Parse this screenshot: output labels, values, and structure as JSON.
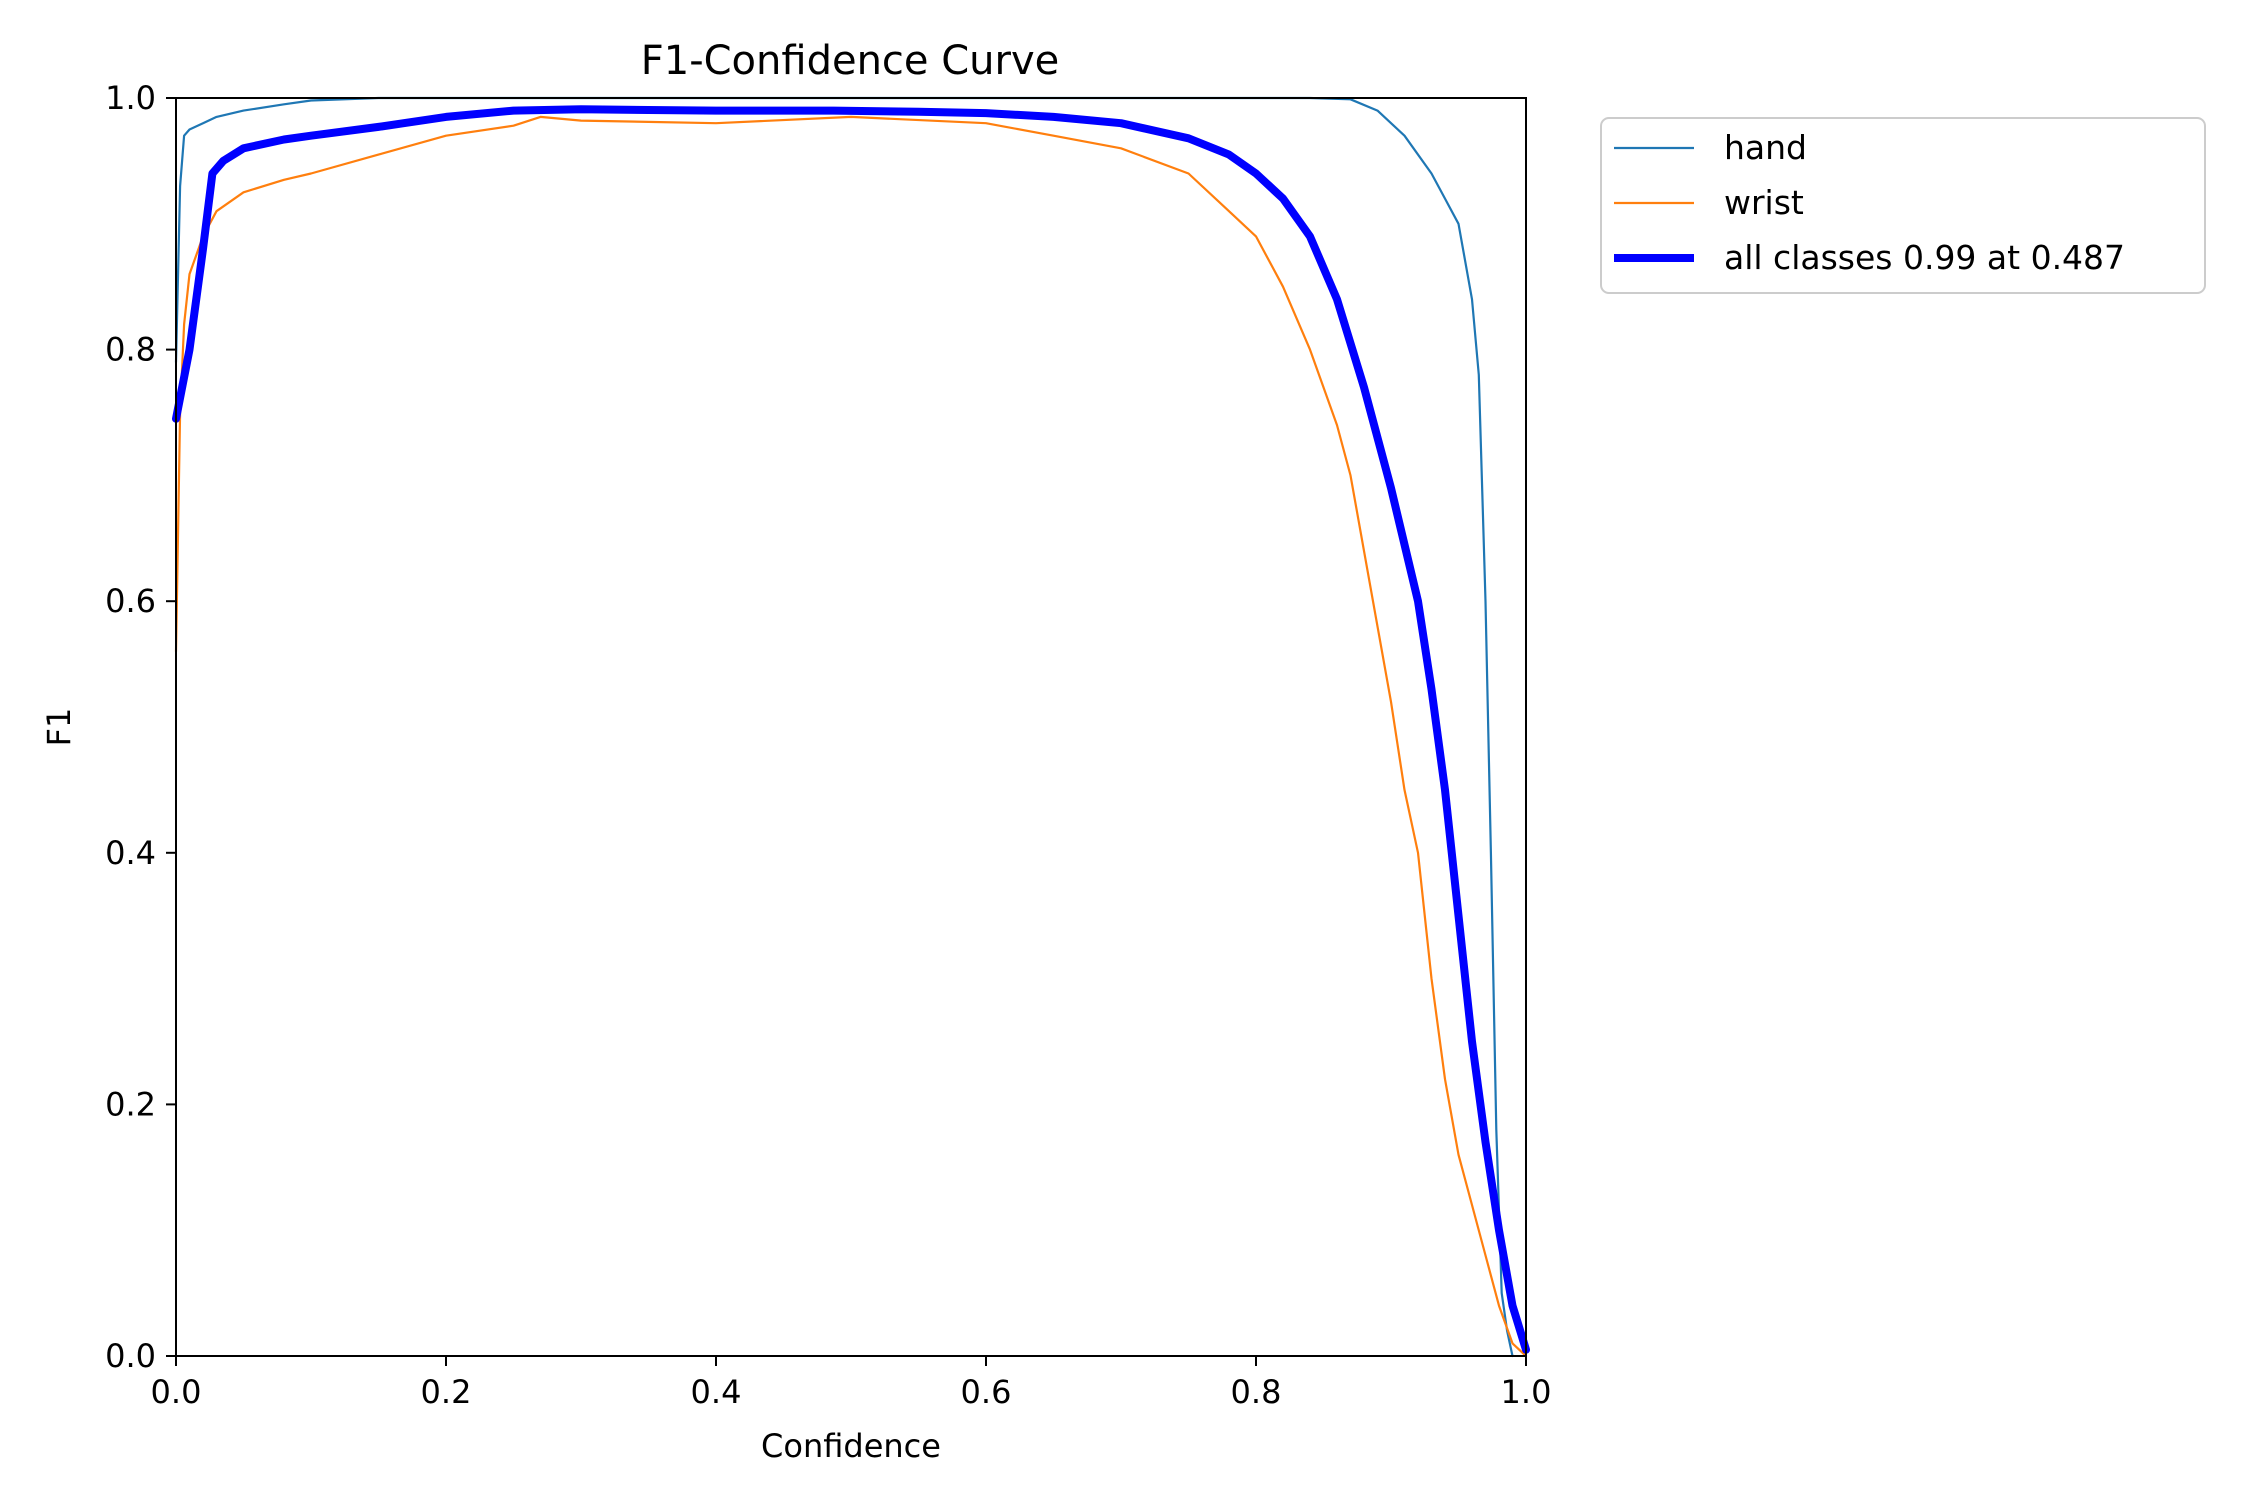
{
  "chart_data": {
    "type": "line",
    "title": "F1-Confidence Curve",
    "xlabel": "Confidence",
    "ylabel": "F1",
    "xlim": [
      0,
      1
    ],
    "ylim": [
      0,
      1
    ],
    "xticks": [
      "0.0",
      "0.2",
      "0.4",
      "0.6",
      "0.8",
      "1.0"
    ],
    "yticks": [
      "0.0",
      "0.2",
      "0.4",
      "0.6",
      "0.8",
      "1.0"
    ],
    "grid": false,
    "legend_position": "outside top-right",
    "series": [
      {
        "name": "hand",
        "color": "#1f77b4",
        "width": "thin",
        "x": [
          0.0,
          0.003,
          0.006,
          0.01,
          0.02,
          0.03,
          0.05,
          0.08,
          0.1,
          0.15,
          0.2,
          0.3,
          0.4,
          0.5,
          0.6,
          0.7,
          0.8,
          0.84,
          0.87,
          0.89,
          0.91,
          0.93,
          0.94,
          0.95,
          0.96,
          0.965,
          0.97,
          0.974,
          0.978,
          0.982,
          0.986,
          0.99
        ],
        "y": [
          0.79,
          0.93,
          0.97,
          0.975,
          0.98,
          0.985,
          0.99,
          0.995,
          0.998,
          1.0,
          1.0,
          1.0,
          1.0,
          1.0,
          1.0,
          1.0,
          1.0,
          1.0,
          0.999,
          0.99,
          0.97,
          0.94,
          0.92,
          0.9,
          0.84,
          0.78,
          0.6,
          0.4,
          0.18,
          0.05,
          0.02,
          0.0
        ]
      },
      {
        "name": "wrist",
        "color": "#ff7f0e",
        "width": "thin",
        "x": [
          0.0,
          0.003,
          0.006,
          0.01,
          0.02,
          0.03,
          0.05,
          0.08,
          0.1,
          0.15,
          0.2,
          0.25,
          0.27,
          0.3,
          0.4,
          0.5,
          0.6,
          0.65,
          0.7,
          0.75,
          0.78,
          0.8,
          0.82,
          0.84,
          0.86,
          0.87,
          0.88,
          0.89,
          0.9,
          0.91,
          0.92,
          0.93,
          0.94,
          0.95,
          0.96,
          0.97,
          0.98,
          0.99,
          1.0
        ],
        "y": [
          0.56,
          0.75,
          0.82,
          0.86,
          0.89,
          0.91,
          0.925,
          0.935,
          0.94,
          0.955,
          0.97,
          0.978,
          0.985,
          0.982,
          0.98,
          0.985,
          0.98,
          0.97,
          0.96,
          0.94,
          0.91,
          0.89,
          0.85,
          0.8,
          0.74,
          0.7,
          0.64,
          0.58,
          0.52,
          0.45,
          0.4,
          0.3,
          0.22,
          0.16,
          0.12,
          0.08,
          0.04,
          0.01,
          0.0
        ]
      },
      {
        "name": "all classes 0.99 at 0.487",
        "color": "#0000ff",
        "width": "thick",
        "x": [
          0.0,
          0.01,
          0.02,
          0.027,
          0.035,
          0.05,
          0.08,
          0.1,
          0.15,
          0.2,
          0.25,
          0.3,
          0.4,
          0.487,
          0.55,
          0.6,
          0.65,
          0.7,
          0.75,
          0.78,
          0.8,
          0.82,
          0.84,
          0.86,
          0.88,
          0.9,
          0.92,
          0.93,
          0.94,
          0.95,
          0.96,
          0.97,
          0.98,
          0.99,
          1.0
        ],
        "y": [
          0.745,
          0.8,
          0.88,
          0.94,
          0.95,
          0.96,
          0.967,
          0.97,
          0.977,
          0.985,
          0.99,
          0.991,
          0.99,
          0.99,
          0.989,
          0.988,
          0.985,
          0.98,
          0.968,
          0.955,
          0.94,
          0.92,
          0.89,
          0.84,
          0.77,
          0.69,
          0.6,
          0.53,
          0.45,
          0.35,
          0.25,
          0.17,
          0.1,
          0.04,
          0.005
        ]
      }
    ]
  }
}
